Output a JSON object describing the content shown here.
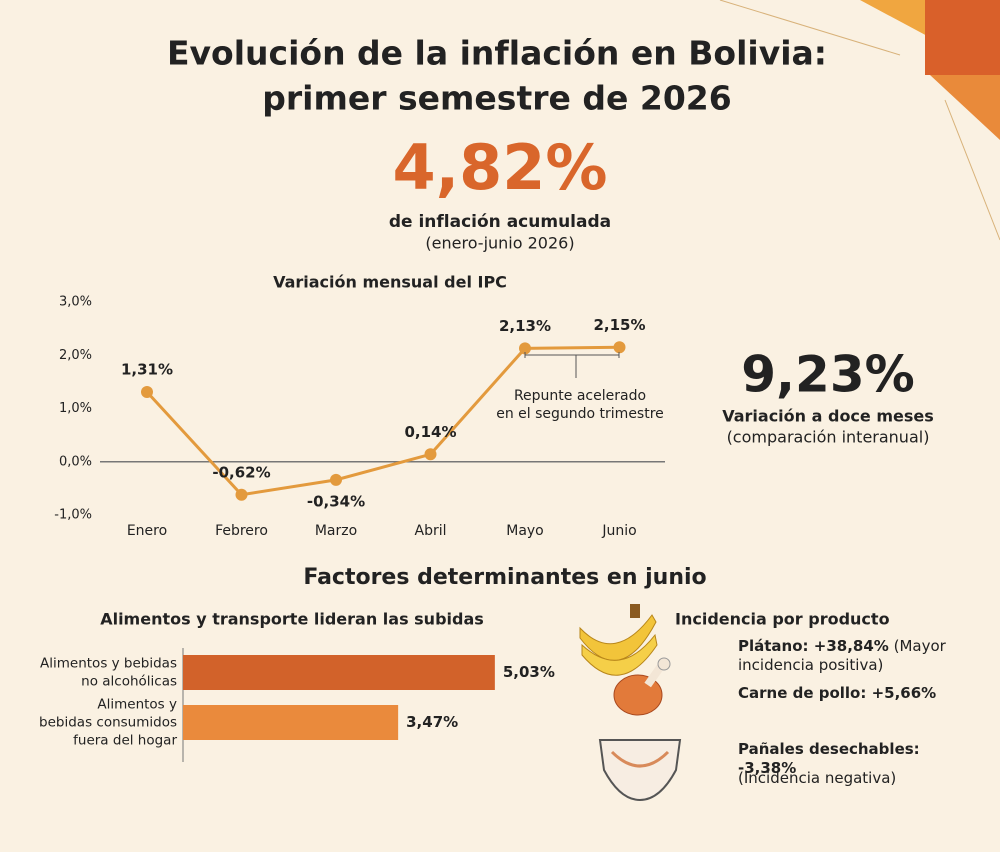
{
  "header": {
    "title": [
      "Evolución de la inflación en Bolivia:",
      "primer semestre de 2026"
    ]
  },
  "headline": {
    "value": "4,82%",
    "label": "de inflación acumulada",
    "period": "(enero-junio 2026)"
  },
  "annual": {
    "value": "9,23%",
    "label": "Variación a doce meses",
    "note": "(comparación interanual)"
  },
  "chart_data": [
    {
      "type": "line",
      "title": "Variación mensual del IPC",
      "categories": [
        "Enero",
        "Febrero",
        "Marzo",
        "Abril",
        "Mayo",
        "Junio"
      ],
      "series": [
        {
          "values": [
            1.31,
            -0.62,
            -0.34,
            0.14,
            2.13,
            2.15
          ],
          "value_labels": [
            "1,31%",
            "-0,62%",
            "-0,34%",
            "0,14%",
            "2,13%",
            "2,15%"
          ],
          "color": "#e39a3d"
        }
      ],
      "ylim": [
        -1,
        3
      ],
      "yticks": [
        {
          "value": -1,
          "label": "-1,0%"
        },
        {
          "value": 0,
          "label": "0,0%"
        },
        {
          "value": 1,
          "label": "1,0%"
        },
        {
          "value": 2,
          "label": "2,0%"
        },
        {
          "value": 3,
          "label": "3,0%"
        }
      ],
      "annotation": [
        "Repunte acelerado",
        "en el segundo trimestre"
      ]
    },
    {
      "type": "bar",
      "title": "Factores determinantes en junio",
      "subtitle": "Alimentos y transporte lideran las subidas",
      "orientation": "horizontal",
      "categories": [
        [
          "Alimentos y bebidas",
          "no alcohólicas"
        ],
        [
          "Alimentos y",
          "bebidas consumidos",
          "fuera del hogar"
        ]
      ],
      "values": [
        5.03,
        3.47
      ],
      "value_labels": [
        "5,03%",
        "3,47%"
      ],
      "colors": [
        "#d2622a",
        "#ea8a3c"
      ],
      "xlim": [
        0,
        5.5
      ]
    }
  ],
  "products": {
    "title": "Incidencia por producto",
    "items": [
      {
        "text": "Plátano: +38,84%",
        "note": "(Mayor incidencia positiva)"
      },
      {
        "text": "Carne de pollo: +5,66%"
      },
      {
        "text": "Pañales desechables: -3,38%",
        "note": "(Incidencia negativa)"
      }
    ]
  }
}
